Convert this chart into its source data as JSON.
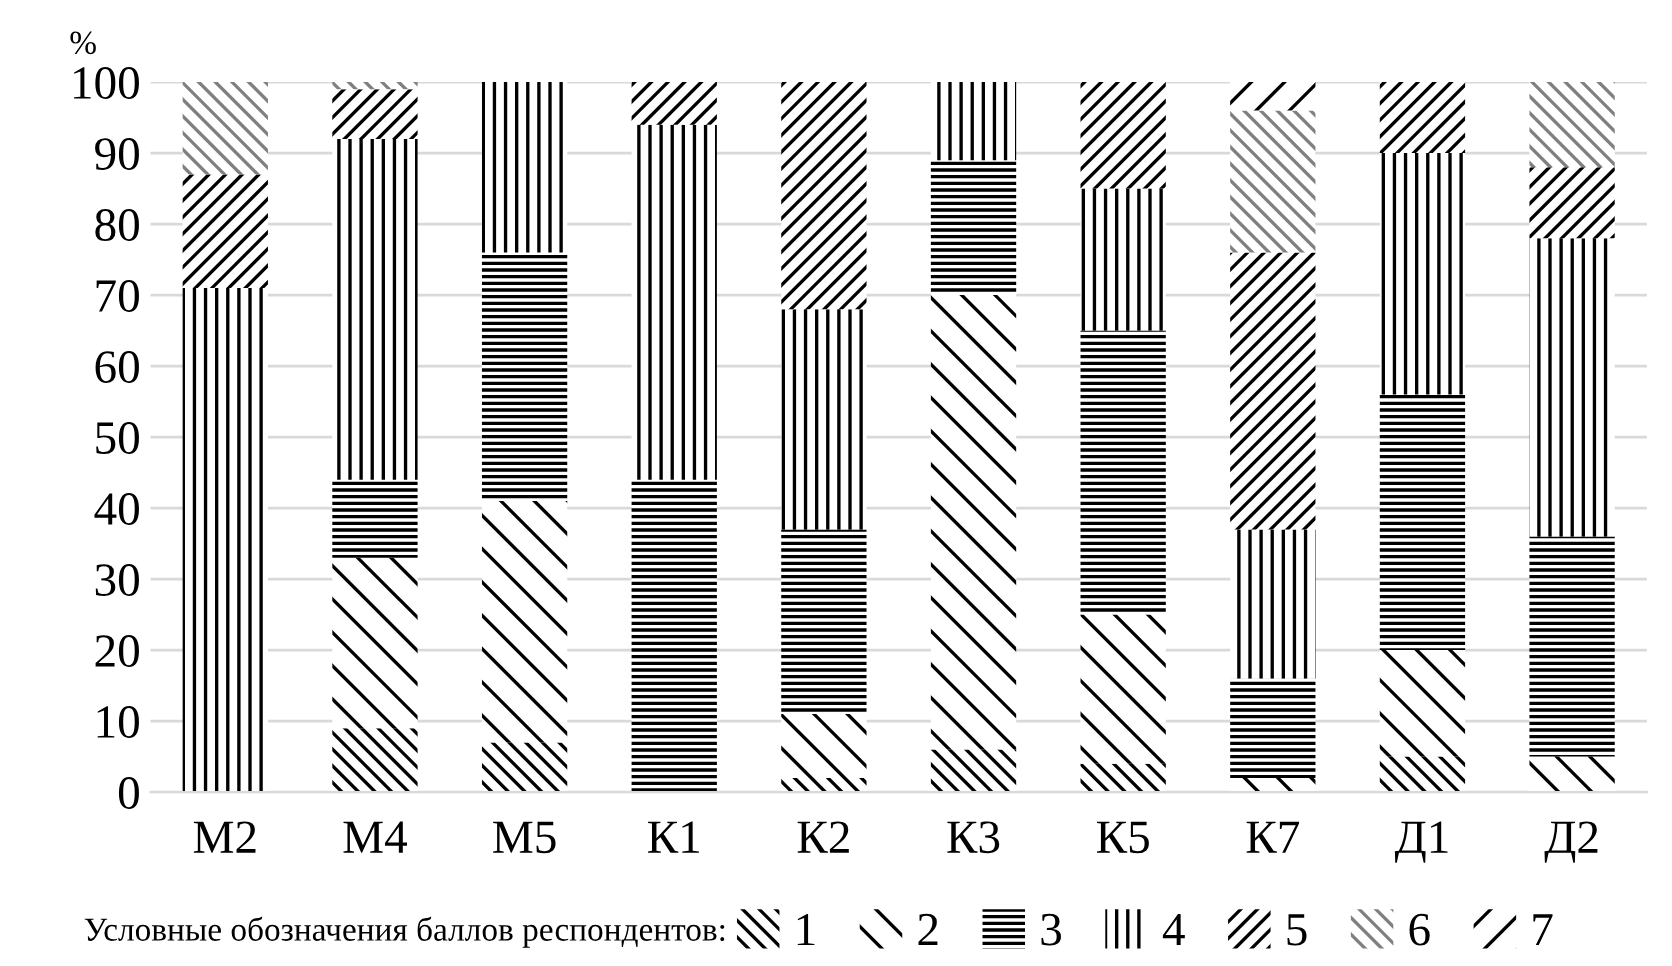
{
  "chart_data": {
    "type": "bar",
    "stacked": true,
    "ylabel": "%",
    "legend_title": "Условные обозначения баллов респондентов:",
    "legend": "bottom",
    "grid": "y",
    "categories": [
      "М2",
      "М4",
      "М5",
      "К1",
      "К2",
      "К3",
      "К5",
      "К7",
      "Д1",
      "Д2"
    ],
    "ylim": [
      0,
      100
    ],
    "yticks": [
      0,
      10,
      20,
      30,
      40,
      50,
      60,
      70,
      80,
      90,
      100
    ],
    "series": [
      {
        "name": "1",
        "color": "#000000",
        "values": [
          null,
          9,
          7,
          null,
          2,
          6,
          4,
          null,
          5,
          null
        ]
      },
      {
        "name": "2",
        "color": "#000000",
        "values": [
          null,
          24,
          34,
          null,
          9,
          64,
          21,
          2,
          15,
          5
        ]
      },
      {
        "name": "3",
        "color": "#000000",
        "values": [
          null,
          11,
          35,
          44,
          26,
          19,
          40,
          14,
          36,
          31
        ]
      },
      {
        "name": "4",
        "color": "#000000",
        "values": [
          71,
          48,
          24,
          50,
          31,
          11,
          20,
          21,
          34,
          42
        ]
      },
      {
        "name": "5",
        "color": "#000000",
        "values": [
          16,
          7,
          null,
          6,
          32,
          null,
          15,
          39,
          10,
          10
        ]
      },
      {
        "name": "6",
        "color": "#808080",
        "values": [
          13,
          1,
          null,
          null,
          null,
          null,
          null,
          20,
          null,
          12
        ]
      },
      {
        "name": "7",
        "color": "#000000",
        "values": [
          null,
          null,
          null,
          null,
          null,
          null,
          null,
          4,
          null,
          null
        ]
      }
    ]
  }
}
